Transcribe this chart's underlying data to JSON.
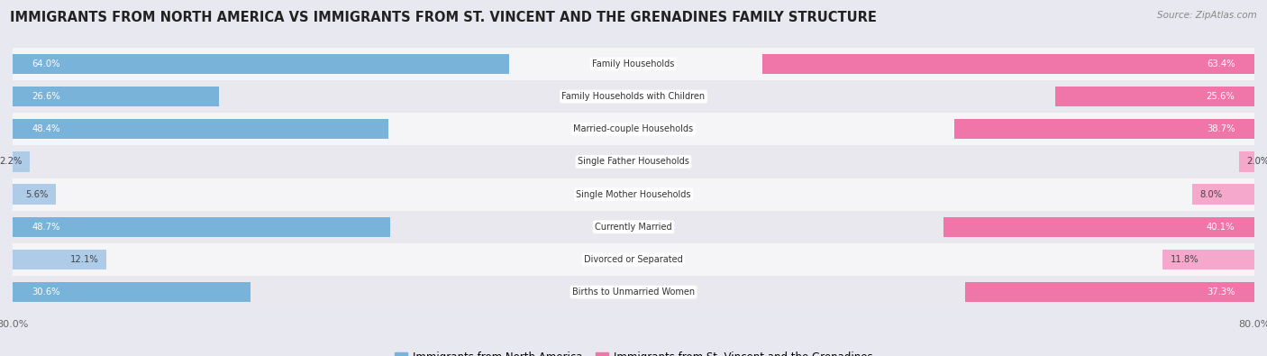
{
  "title": "IMMIGRANTS FROM NORTH AMERICA VS IMMIGRANTS FROM ST. VINCENT AND THE GRENADINES FAMILY STRUCTURE",
  "source": "Source: ZipAtlas.com",
  "categories": [
    "Family Households",
    "Family Households with Children",
    "Married-couple Households",
    "Single Father Households",
    "Single Mother Households",
    "Currently Married",
    "Divorced or Separated",
    "Births to Unmarried Women"
  ],
  "left_values": [
    64.0,
    26.6,
    48.4,
    2.2,
    5.6,
    48.7,
    12.1,
    30.6
  ],
  "right_values": [
    63.4,
    25.6,
    38.7,
    2.0,
    8.0,
    40.1,
    11.8,
    37.3
  ],
  "left_color": "#7ab3d9",
  "right_color": "#f075a8",
  "left_color_light": "#aecce8",
  "right_color_light": "#f5a8cc",
  "left_label": "Immigrants from North America",
  "right_label": "Immigrants from St. Vincent and the Grenadines",
  "axis_max": 80.0,
  "background_color": "#e8e8f0",
  "row_colors": [
    "#f5f5f8",
    "#e8e8ee"
  ],
  "title_fontsize": 10.5,
  "bar_height": 0.62,
  "white_text_threshold": 15.0
}
